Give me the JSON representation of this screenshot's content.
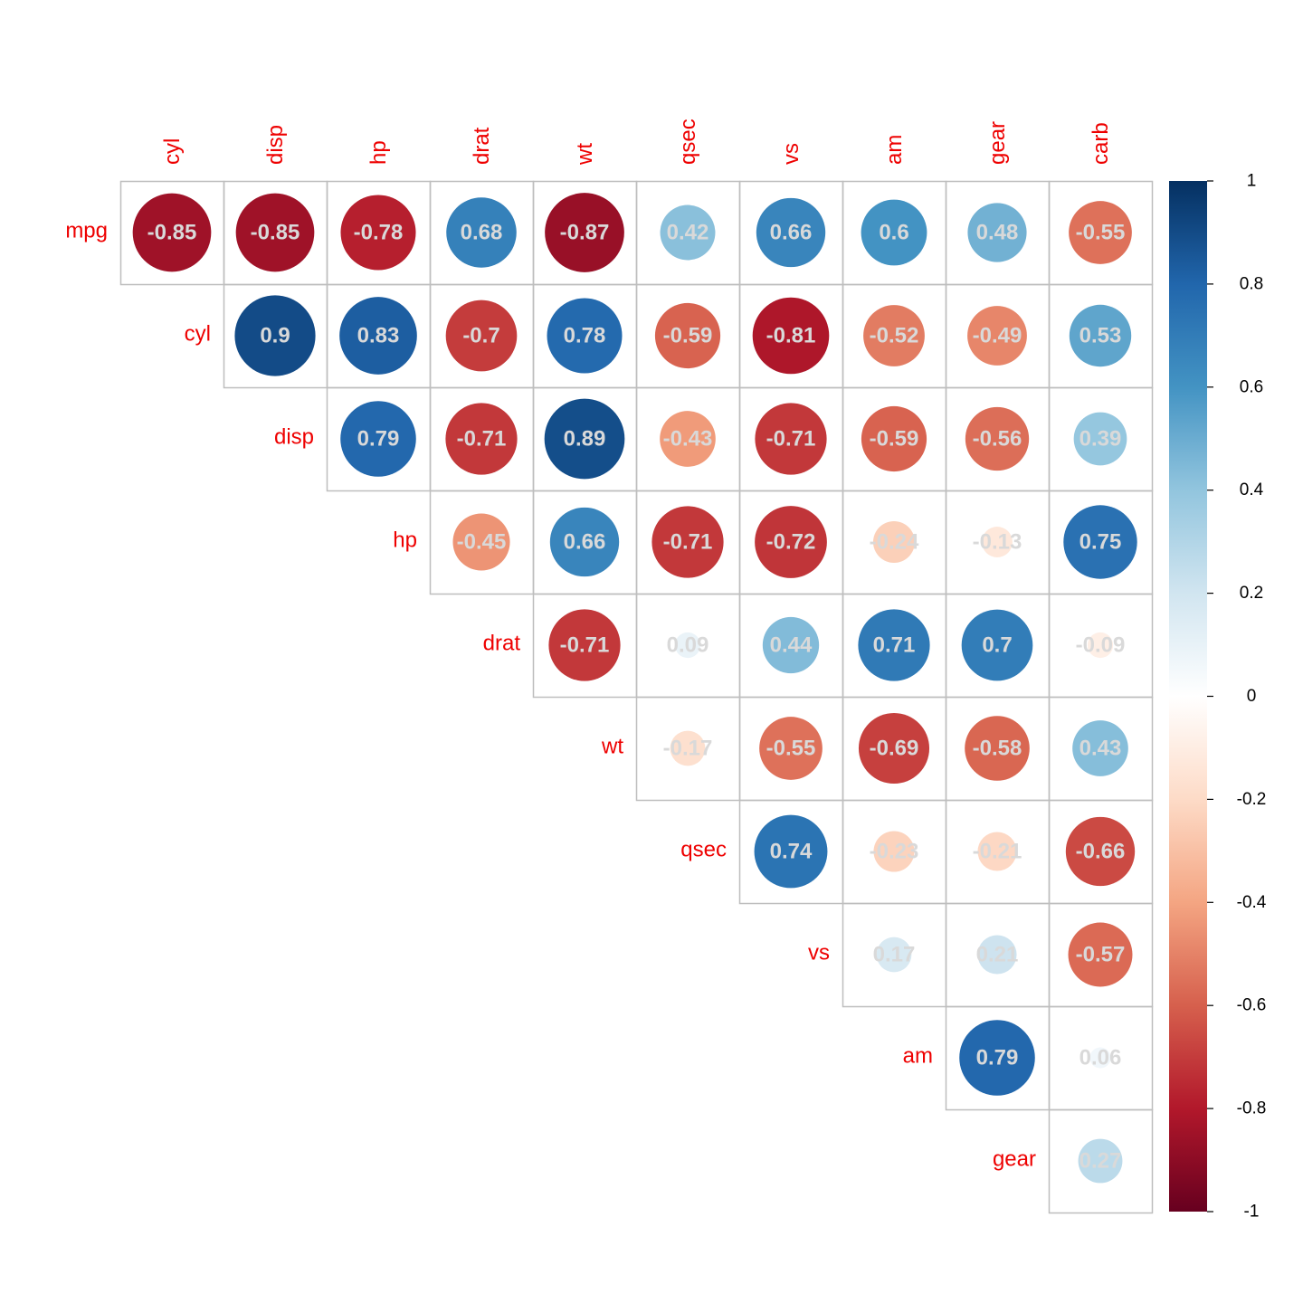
{
  "chart_data": {
    "type": "heatmap",
    "style": "upper-triangle circle correlation plot with coefficient labels",
    "title": "",
    "row_labels": [
      "mpg",
      "cyl",
      "disp",
      "hp",
      "drat",
      "wt",
      "qsec",
      "vs",
      "am",
      "gear"
    ],
    "col_labels": [
      "cyl",
      "disp",
      "hp",
      "drat",
      "wt",
      "qsec",
      "vs",
      "am",
      "gear",
      "carb"
    ],
    "matrix": [
      [
        -0.85,
        -0.85,
        -0.78,
        0.68,
        -0.87,
        0.42,
        0.66,
        0.6,
        0.48,
        -0.55
      ],
      [
        null,
        0.9,
        0.83,
        -0.7,
        0.78,
        -0.59,
        -0.81,
        -0.52,
        -0.49,
        0.53
      ],
      [
        null,
        null,
        0.79,
        -0.71,
        0.89,
        -0.43,
        -0.71,
        -0.59,
        -0.56,
        0.39
      ],
      [
        null,
        null,
        null,
        -0.45,
        0.66,
        -0.71,
        -0.72,
        -0.24,
        -0.13,
        0.75
      ],
      [
        null,
        null,
        null,
        null,
        -0.71,
        0.09,
        0.44,
        0.71,
        0.7,
        -0.09
      ],
      [
        null,
        null,
        null,
        null,
        null,
        -0.17,
        -0.55,
        -0.69,
        -0.58,
        0.43
      ],
      [
        null,
        null,
        null,
        null,
        null,
        null,
        0.74,
        -0.23,
        -0.21,
        -0.66
      ],
      [
        null,
        null,
        null,
        null,
        null,
        null,
        null,
        0.17,
        0.21,
        -0.57
      ],
      [
        null,
        null,
        null,
        null,
        null,
        null,
        null,
        null,
        0.79,
        0.06
      ],
      [
        null,
        null,
        null,
        null,
        null,
        null,
        null,
        null,
        null,
        0.27
      ]
    ],
    "value_range": [
      -1,
      1
    ],
    "colorbar": {
      "ticks": [
        1,
        0.8,
        0.6,
        0.4,
        0.2,
        0,
        -0.2,
        -0.4,
        -0.6,
        -0.8,
        -1
      ],
      "tick_labels": [
        "1",
        "0.8",
        "0.6",
        "0.4",
        "0.2",
        "0",
        "-0.2",
        "-0.4",
        "-0.6",
        "-0.8",
        "-1"
      ],
      "placement": "right"
    },
    "colors": {
      "label_text": "#ee0000",
      "value_text": "#d9d9d9",
      "grid": "#bebebe",
      "scale": [
        "#67001F",
        "#B2182B",
        "#D6604D",
        "#F4A582",
        "#FDDBC7",
        "#FFFFFF",
        "#D1E5F0",
        "#92C5DE",
        "#4393C3",
        "#2166AC",
        "#053061"
      ]
    }
  }
}
